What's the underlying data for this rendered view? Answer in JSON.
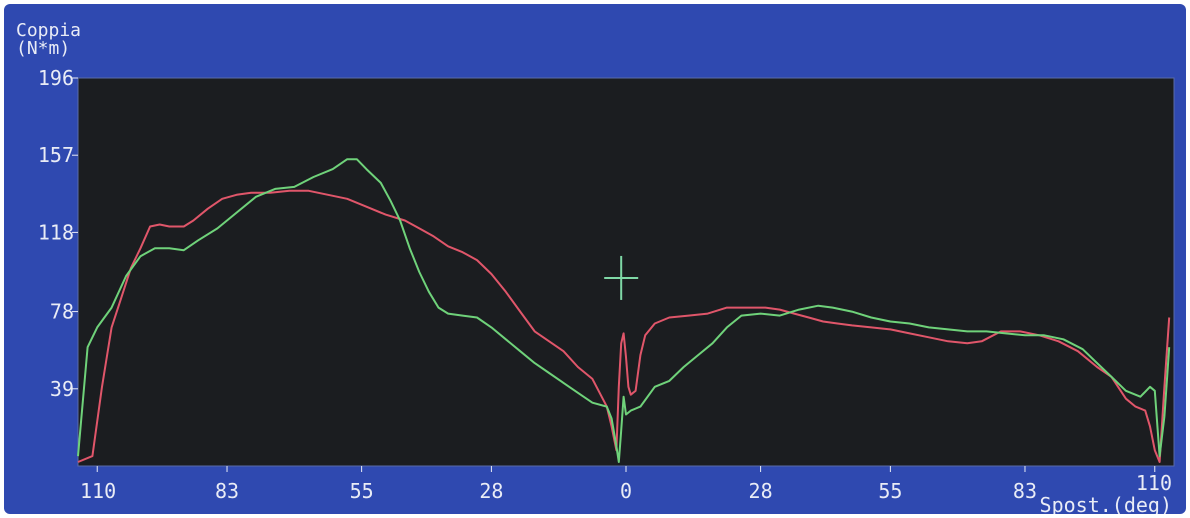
{
  "chart_data": {
    "type": "line",
    "ylabel_line1": "Coppia",
    "ylabel_line2": "(N*m)",
    "xlabel": "Spost.(deg)",
    "ylim": [
      0,
      196
    ],
    "y_ticks": [
      "196",
      "157",
      "118",
      "78",
      "39"
    ],
    "x_ticks": [
      "110",
      "83",
      "55",
      "28",
      "0",
      "28",
      "55",
      "83",
      "110"
    ],
    "x_tick_positions": [
      -110,
      -83,
      -55,
      -28,
      0,
      28,
      55,
      83,
      110
    ],
    "xlim": [
      -114,
      114
    ],
    "cursor": {
      "x": -1,
      "y": 95
    },
    "series": [
      {
        "color": "#e0566a",
        "points": [
          [
            -114,
            2
          ],
          [
            -111,
            5
          ],
          [
            -109,
            40
          ],
          [
            -107,
            70
          ],
          [
            -105,
            85
          ],
          [
            -103,
            100
          ],
          [
            -101,
            110
          ],
          [
            -99,
            121
          ],
          [
            -97,
            122
          ],
          [
            -95,
            121
          ],
          [
            -92,
            121
          ],
          [
            -90,
            124
          ],
          [
            -87,
            130
          ],
          [
            -84,
            135
          ],
          [
            -81,
            137
          ],
          [
            -78,
            138
          ],
          [
            -74,
            138
          ],
          [
            -70,
            139
          ],
          [
            -66,
            139
          ],
          [
            -62,
            137
          ],
          [
            -58,
            135
          ],
          [
            -54,
            131
          ],
          [
            -50,
            127
          ],
          [
            -46,
            124
          ],
          [
            -43,
            120
          ],
          [
            -40,
            116
          ],
          [
            -37,
            111
          ],
          [
            -34,
            108
          ],
          [
            -31,
            104
          ],
          [
            -28,
            97
          ],
          [
            -25,
            88
          ],
          [
            -22,
            78
          ],
          [
            -19,
            68
          ],
          [
            -16,
            63
          ],
          [
            -13,
            58
          ],
          [
            -10,
            50
          ],
          [
            -7,
            44
          ],
          [
            -4,
            30
          ],
          [
            -3,
            20
          ],
          [
            -2,
            8
          ],
          [
            -1.5,
            40
          ],
          [
            -1,
            62
          ],
          [
            -0.5,
            67
          ],
          [
            0,
            55
          ],
          [
            0.5,
            40
          ],
          [
            1,
            36
          ],
          [
            2,
            38
          ],
          [
            3,
            56
          ],
          [
            4,
            66
          ],
          [
            6,
            72
          ],
          [
            9,
            75
          ],
          [
            13,
            76
          ],
          [
            17,
            77
          ],
          [
            21,
            80
          ],
          [
            25,
            80
          ],
          [
            29,
            80
          ],
          [
            32,
            79
          ],
          [
            35,
            77
          ],
          [
            38,
            75
          ],
          [
            41,
            73
          ],
          [
            44,
            72
          ],
          [
            47,
            71
          ],
          [
            51,
            70
          ],
          [
            55,
            69
          ],
          [
            59,
            67
          ],
          [
            63,
            65
          ],
          [
            67,
            63
          ],
          [
            71,
            62
          ],
          [
            74,
            63
          ],
          [
            78,
            68
          ],
          [
            82,
            68
          ],
          [
            86,
            66
          ],
          [
            90,
            63
          ],
          [
            94,
            58
          ],
          [
            98,
            50
          ],
          [
            101,
            45
          ],
          [
            104,
            34
          ],
          [
            106,
            30
          ],
          [
            108,
            28
          ],
          [
            109,
            20
          ],
          [
            110,
            8
          ],
          [
            111,
            2
          ],
          [
            112,
            40
          ],
          [
            113,
            75
          ]
        ]
      },
      {
        "color": "#6fd27a",
        "points": [
          [
            -114,
            5
          ],
          [
            -112,
            60
          ],
          [
            -110,
            70
          ],
          [
            -107,
            80
          ],
          [
            -104,
            96
          ],
          [
            -101,
            106
          ],
          [
            -98,
            110
          ],
          [
            -95,
            110
          ],
          [
            -92,
            109
          ],
          [
            -89,
            114
          ],
          [
            -85,
            120
          ],
          [
            -81,
            128
          ],
          [
            -77,
            136
          ],
          [
            -73,
            140
          ],
          [
            -69,
            141
          ],
          [
            -65,
            146
          ],
          [
            -61,
            150
          ],
          [
            -58,
            155
          ],
          [
            -56,
            155
          ],
          [
            -54,
            150
          ],
          [
            -51,
            143
          ],
          [
            -49,
            134
          ],
          [
            -47,
            124
          ],
          [
            -45,
            110
          ],
          [
            -43,
            98
          ],
          [
            -41,
            88
          ],
          [
            -39,
            80
          ],
          [
            -37,
            77
          ],
          [
            -34,
            76
          ],
          [
            -31,
            75
          ],
          [
            -28,
            70
          ],
          [
            -25,
            64
          ],
          [
            -22,
            58
          ],
          [
            -19,
            52
          ],
          [
            -16,
            47
          ],
          [
            -13,
            42
          ],
          [
            -10,
            37
          ],
          [
            -7,
            32
          ],
          [
            -4,
            30
          ],
          [
            -3,
            24
          ],
          [
            -2,
            10
          ],
          [
            -1.5,
            2
          ],
          [
            -1,
            18
          ],
          [
            -0.5,
            35
          ],
          [
            0,
            26
          ],
          [
            1,
            28
          ],
          [
            3,
            30
          ],
          [
            6,
            40
          ],
          [
            9,
            43
          ],
          [
            12,
            50
          ],
          [
            15,
            56
          ],
          [
            18,
            62
          ],
          [
            21,
            70
          ],
          [
            24,
            76
          ],
          [
            28,
            77
          ],
          [
            32,
            76
          ],
          [
            36,
            79
          ],
          [
            40,
            81
          ],
          [
            43,
            80
          ],
          [
            47,
            78
          ],
          [
            51,
            75
          ],
          [
            55,
            73
          ],
          [
            59,
            72
          ],
          [
            63,
            70
          ],
          [
            67,
            69
          ],
          [
            71,
            68
          ],
          [
            75,
            68
          ],
          [
            79,
            67
          ],
          [
            83,
            66
          ],
          [
            87,
            66
          ],
          [
            91,
            64
          ],
          [
            95,
            59
          ],
          [
            98,
            52
          ],
          [
            101,
            45
          ],
          [
            104,
            38
          ],
          [
            107,
            35
          ],
          [
            109,
            40
          ],
          [
            110,
            38
          ],
          [
            111,
            5
          ],
          [
            112,
            25
          ],
          [
            113,
            60
          ]
        ]
      }
    ]
  },
  "colors": {
    "screen_bg": "#2f49b0",
    "plot_bg": "#1b1d20",
    "axis_text": "#e9ecf6",
    "cursor": "#7fd8a6"
  }
}
